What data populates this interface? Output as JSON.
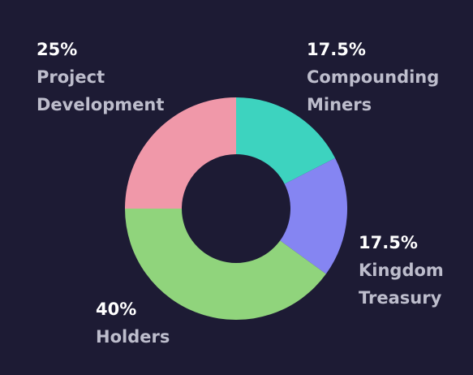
{
  "chart_data": {
    "type": "donut",
    "categories": [
      "Compounding Miners",
      "Kingdom Treasury",
      "Holders",
      "Project Development"
    ],
    "values": [
      17.5,
      17.5,
      40,
      25
    ],
    "value_labels": [
      "17.5%",
      "17.5%",
      "40%",
      "25%"
    ],
    "colors": [
      "#3dd3bf",
      "#8585f2",
      "#90d47c",
      "#f098a9"
    ]
  }
}
